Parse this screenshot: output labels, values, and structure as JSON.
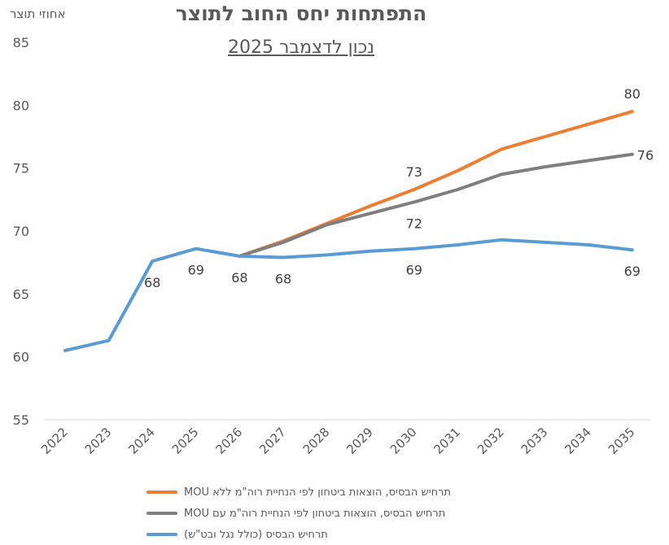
{
  "chart_data": {
    "type": "line",
    "title": "התפתחות יחס החוב לתוצר",
    "subtitle": "נכון לדצמבר 2025",
    "ylabel": "אחוזי תוצר",
    "xlabel": "",
    "ylim": [
      55,
      85
    ],
    "yticks": [
      55,
      60,
      65,
      70,
      75,
      80,
      85
    ],
    "grid": false,
    "legend_position": "bottom",
    "categories": [
      "2022",
      "2023",
      "2024",
      "2025",
      "2026",
      "2027",
      "2028",
      "2029",
      "2030",
      "2031",
      "2032",
      "2033",
      "2034",
      "2035"
    ],
    "series": [
      {
        "name": "תרחיש הבסיס, הוצאות ביטחון לפי הנחיית רוה\"מ ללא MOU",
        "color": "#ED7D31",
        "values": [
          null,
          null,
          null,
          null,
          68.0,
          69.2,
          70.6,
          72.0,
          73.3,
          74.8,
          76.5,
          77.5,
          78.5,
          79.5
        ]
      },
      {
        "name": "תרחיש הבסיס, הוצאות ביטחון לפי הנחיית רוה\"מ עם MOU",
        "color": "#7F7F7F",
        "values": [
          null,
          null,
          null,
          null,
          68.0,
          69.1,
          70.5,
          71.4,
          72.3,
          73.3,
          74.5,
          75.1,
          75.6,
          76.1
        ]
      },
      {
        "name": "תרחיש הבסיס (כולל נגל ובט\"ש)",
        "color": "#5B9BD5",
        "values": [
          60.5,
          61.3,
          67.6,
          68.6,
          68.0,
          67.9,
          68.1,
          68.4,
          68.6,
          68.9,
          69.3,
          69.1,
          68.9,
          68.5
        ]
      }
    ],
    "data_labels": [
      {
        "series": 2,
        "category": "2024",
        "text": "68",
        "placement": "below"
      },
      {
        "series": 2,
        "category": "2025",
        "text": "69",
        "placement": "below"
      },
      {
        "series": 2,
        "category": "2026",
        "text": "68",
        "placement": "below"
      },
      {
        "series": 2,
        "category": "2027",
        "text": "68",
        "placement": "below"
      },
      {
        "series": 2,
        "category": "2030",
        "text": "69",
        "placement": "below"
      },
      {
        "series": 2,
        "category": "2035",
        "text": "69",
        "placement": "below"
      },
      {
        "series": 0,
        "category": "2030",
        "text": "73",
        "placement": "above"
      },
      {
        "series": 0,
        "category": "2035",
        "text": "80",
        "placement": "above"
      },
      {
        "series": 1,
        "category": "2030",
        "text": "72",
        "placement": "below"
      },
      {
        "series": 1,
        "category": "2035",
        "text": "76",
        "placement": "right"
      }
    ]
  }
}
